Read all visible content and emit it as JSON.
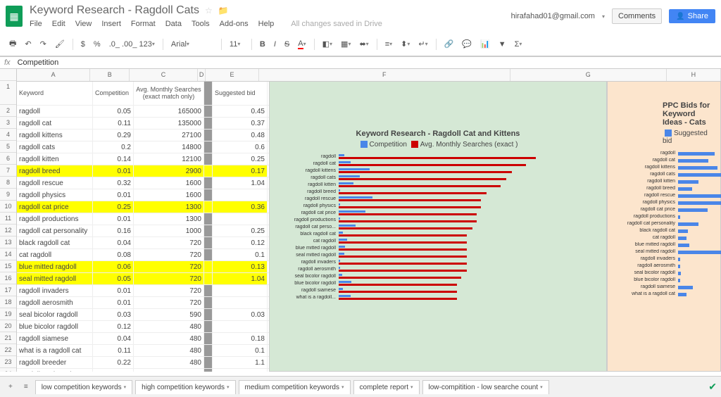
{
  "doc": {
    "title": "Keyword Research - Ragdoll Cats",
    "saved": "All changes saved in Drive",
    "email": "hirafahad01@gmail.com",
    "comments": "Comments",
    "share": "Share"
  },
  "menu": [
    "File",
    "Edit",
    "View",
    "Insert",
    "Format",
    "Data",
    "Tools",
    "Add-ons",
    "Help"
  ],
  "toolbar": {
    "font": "Arial",
    "size": "11",
    "num_fmt": ".0_ .00_ 123"
  },
  "fx": {
    "label": "fx",
    "value": "Competition"
  },
  "columns": [
    "A",
    "B",
    "C",
    "D",
    "E",
    "F",
    "G",
    "H"
  ],
  "header_row": {
    "A": "Keyword",
    "B": "Competition",
    "C": "Avg. Monthly Searches (exact match only)",
    "D": "",
    "E": "Suggested bid"
  },
  "rows": [
    {
      "kw": "ragdoll",
      "comp": "0.05",
      "search": "165000",
      "bid": "0.45",
      "hl": false
    },
    {
      "kw": "ragdoll cat",
      "comp": "0.11",
      "search": "135000",
      "bid": "0.37",
      "hl": false
    },
    {
      "kw": "ragdoll kittens",
      "comp": "0.29",
      "search": "27100",
      "bid": "0.48",
      "hl": false
    },
    {
      "kw": "ragdoll cats",
      "comp": "0.2",
      "search": "14800",
      "bid": "0.6",
      "hl": false
    },
    {
      "kw": "ragdoll kitten",
      "comp": "0.14",
      "search": "12100",
      "bid": "0.25",
      "hl": false
    },
    {
      "kw": "ragdoll breed",
      "comp": "0.01",
      "search": "2900",
      "bid": "0.17",
      "hl": true
    },
    {
      "kw": "ragdoll rescue",
      "comp": "0.32",
      "search": "1600",
      "bid": "1.04",
      "hl": false
    },
    {
      "kw": "ragdoll physics",
      "comp": "0.01",
      "search": "1600",
      "bid": "",
      "hl": false
    },
    {
      "kw": "ragdoll cat price",
      "comp": "0.25",
      "search": "1300",
      "bid": "0.36",
      "hl": true
    },
    {
      "kw": "ragdoll productions",
      "comp": "0.01",
      "search": "1300",
      "bid": "",
      "hl": false
    },
    {
      "kw": "ragdoll cat personality",
      "comp": "0.16",
      "search": "1000",
      "bid": "0.25",
      "hl": false
    },
    {
      "kw": "black ragdoll cat",
      "comp": "0.04",
      "search": "720",
      "bid": "0.12",
      "hl": false
    },
    {
      "kw": "cat ragdoll",
      "comp": "0.08",
      "search": "720",
      "bid": "0.1",
      "hl": false
    },
    {
      "kw": "blue mitted ragdoll",
      "comp": "0.06",
      "search": "720",
      "bid": "0.13",
      "hl": true
    },
    {
      "kw": "seal mitted ragdoll",
      "comp": "0.05",
      "search": "720",
      "bid": "1.04",
      "hl": true
    },
    {
      "kw": "ragdoll invaders",
      "comp": "0.01",
      "search": "720",
      "bid": "",
      "hl": false
    },
    {
      "kw": "ragdoll aerosmith",
      "comp": "0.01",
      "search": "720",
      "bid": "",
      "hl": false
    },
    {
      "kw": "seal bicolor ragdoll",
      "comp": "0.03",
      "search": "590",
      "bid": "0.03",
      "hl": false
    },
    {
      "kw": "blue bicolor ragdoll",
      "comp": "0.12",
      "search": "480",
      "bid": "",
      "hl": false
    },
    {
      "kw": "ragdoll siamese",
      "comp": "0.04",
      "search": "480",
      "bid": "0.18",
      "hl": false
    },
    {
      "kw": "what is a ragdoll cat",
      "comp": "0.11",
      "search": "480",
      "bid": "0.1",
      "hl": false
    },
    {
      "kw": "ragdoll breeder",
      "comp": "0.22",
      "search": "480",
      "bid": "1.1",
      "hl": false
    },
    {
      "kw": "ragdoll cat breed",
      "comp": "0.16",
      "search": "480",
      "bid": "0.72",
      "hl": false
    }
  ],
  "chart1": {
    "title": "Keyword Research - Ragdoll Cat and Kittens",
    "legend": [
      "Competition",
      "Avg. Monthly Searches (exact )"
    ],
    "labels": [
      "ragdoll",
      "ragdoll cat",
      "ragdoll kittens",
      "ragdoll cats",
      "ragdoll kitten",
      "ragdoll breed",
      "ragdoll rescue",
      "ragdoll physics",
      "ragdoll cat price",
      "ragdoll productions",
      "ragdoll cat perso...",
      "black ragdoll cat",
      "cat ragdoll",
      "blue mitted ragdoll",
      "seal mitted ragdoll",
      "ragdoll invaders",
      "ragdoll aerosmith",
      "seal bicolor ragdoll",
      "blue bicolor ragdoll",
      "ragdoll siamese",
      "what is a ragdoll..."
    ],
    "comp": [
      5,
      11,
      29,
      20,
      14,
      1,
      32,
      1,
      25,
      1,
      16,
      4,
      8,
      6,
      5,
      1,
      1,
      3,
      12,
      4,
      11
    ],
    "search": [
      100,
      95,
      88,
      85,
      82,
      75,
      72,
      72,
      70,
      70,
      68,
      65,
      65,
      65,
      65,
      65,
      65,
      62,
      60,
      60,
      60
    ],
    "colors": {
      "comp": "#4a86e8",
      "search": "#cc0000",
      "bg": "#d5e8d5"
    }
  },
  "chart2": {
    "title": "PPC Bids for Keyword Ideas - Cats",
    "legend": [
      "Suggested bid"
    ],
    "labels": [
      "ragdoll",
      "ragdoll cat",
      "ragdoll kittens",
      "ragdoll cats",
      "ragdoll kitten",
      "ragdoll breed",
      "ragdoll rescue",
      "ragdoll physics",
      "ragdoll cat price",
      "ragdoll productions",
      "ragdoll cat personality",
      "black ragdoll cat",
      "cat ragdoll",
      "blue mitted ragdoll",
      "seal mitted ragdoll",
      "ragdoll invaders",
      "ragdoll aerosmith",
      "seal bicolor ragdoll",
      "blue bicolor ragdoll",
      "ragdoll siamese",
      "what is a ragdoll cat"
    ],
    "bid": [
      40,
      33,
      43,
      54,
      22,
      15,
      93,
      100,
      32,
      2,
      22,
      11,
      9,
      12,
      93,
      2,
      2,
      3,
      2,
      16,
      9
    ],
    "colors": {
      "bid": "#4a86e8",
      "bg": "#fce5cd"
    }
  },
  "sheets": [
    "low competition keywords",
    "high competition keywords",
    "medium competition keywords",
    "complete report",
    "low-compitition - low searche count"
  ]
}
